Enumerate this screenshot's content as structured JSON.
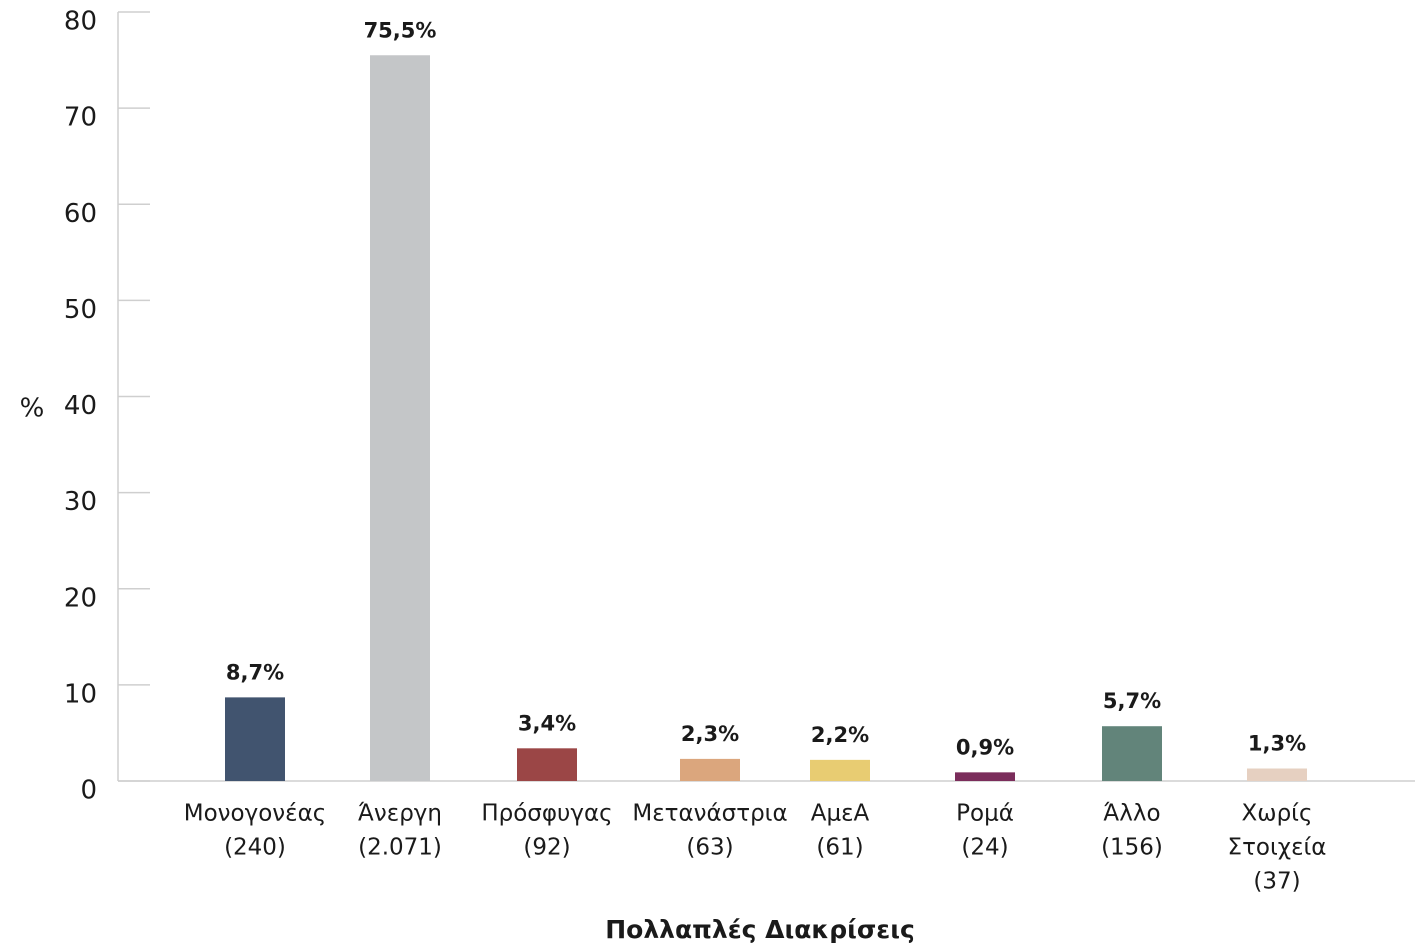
{
  "chart_data": {
    "type": "bar",
    "ylabel": "%",
    "xlabel": "Πολλαπλές Διακρίσεις",
    "categories": [
      [
        "Μονογονέας",
        "(240)"
      ],
      [
        "Άνεργη",
        "(2.071)"
      ],
      [
        "Πρόσφυγας",
        "(92)"
      ],
      [
        "Μετανάστρια",
        "(63)"
      ],
      [
        "ΑμεΑ",
        "(61)"
      ],
      [
        "Ρομά",
        "(24)"
      ],
      [
        "Άλλο",
        "(156)"
      ],
      [
        "Χωρίς",
        "Στοιχεία",
        "(37)"
      ]
    ],
    "values": [
      8.7,
      75.5,
      3.4,
      2.3,
      2.2,
      0.9,
      5.7,
      1.3
    ],
    "value_labels": [
      "8,7%",
      "75,5%",
      "3,4%",
      "2,3%",
      "2,2%",
      "0,9%",
      "5,7%",
      "1,3%"
    ],
    "colors": [
      "#41546f",
      "#c4c6c8",
      "#9b4646",
      "#dba67d",
      "#e8cc72",
      "#7b2d5b",
      "#62847a",
      "#e6d0c1"
    ],
    "ylim": [
      0,
      80
    ],
    "yticks": [
      0,
      10,
      20,
      30,
      40,
      50,
      60,
      70,
      80
    ],
    "grid": false
  }
}
